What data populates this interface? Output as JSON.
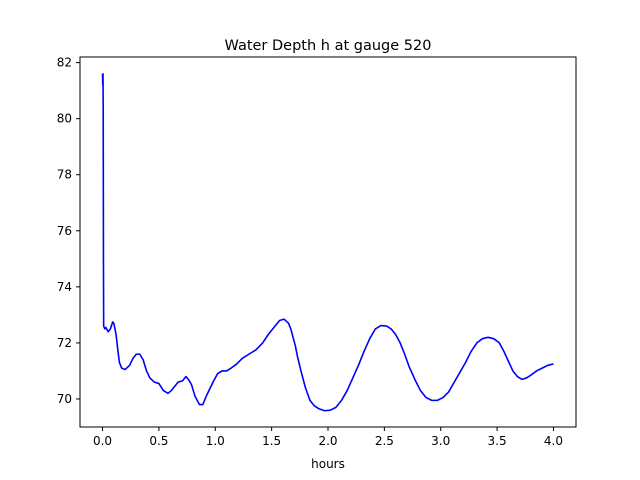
{
  "chart_data": {
    "type": "line",
    "title": "Water Depth h at gauge 520",
    "xlabel": "hours",
    "ylabel": "",
    "xlim": [
      -0.2,
      4.2
    ],
    "ylim": [
      69.0,
      82.2
    ],
    "x_ticks": [
      0.0,
      0.5,
      1.0,
      1.5,
      2.0,
      2.5,
      3.0,
      3.5,
      4.0
    ],
    "x_tick_labels": [
      "0.0",
      "0.5",
      "1.0",
      "1.5",
      "2.0",
      "2.5",
      "3.0",
      "3.5",
      "4.0"
    ],
    "y_ticks": [
      70,
      72,
      74,
      76,
      78,
      80,
      82
    ],
    "y_tick_labels": [
      "70",
      "72",
      "74",
      "76",
      "78",
      "80",
      "82"
    ],
    "grid": false,
    "legend": "none",
    "colors": {
      "line": "#0000ff",
      "axes": "#000000",
      "background": "#ffffff"
    },
    "series": [
      {
        "x": [
          0.0,
          0.002,
          0.004,
          0.006,
          0.008,
          0.01,
          0.015,
          0.02,
          0.03,
          0.05,
          0.07,
          0.09,
          0.1,
          0.12,
          0.14,
          0.15,
          0.17,
          0.2,
          0.24,
          0.27,
          0.3,
          0.33,
          0.36,
          0.39,
          0.42,
          0.46,
          0.5,
          0.54,
          0.58,
          0.61,
          0.64,
          0.67,
          0.71,
          0.74,
          0.77,
          0.79,
          0.82,
          0.86,
          0.89,
          0.92,
          0.95,
          0.98,
          1.02,
          1.06,
          1.1,
          1.14,
          1.19,
          1.24,
          1.3,
          1.36,
          1.42,
          1.47,
          1.52,
          1.57,
          1.61,
          1.65,
          1.67,
          1.69,
          1.71,
          1.73,
          1.76,
          1.8,
          1.84,
          1.88,
          1.92,
          1.97,
          2.02,
          2.07,
          2.12,
          2.17,
          2.22,
          2.27,
          2.32,
          2.37,
          2.42,
          2.47,
          2.52,
          2.56,
          2.6,
          2.64,
          2.68,
          2.72,
          2.77,
          2.82,
          2.87,
          2.92,
          2.97,
          3.02,
          3.07,
          3.12,
          3.17,
          3.22,
          3.27,
          3.32,
          3.37,
          3.42,
          3.47,
          3.52,
          3.56,
          3.6,
          3.64,
          3.68,
          3.72,
          3.76,
          3.8,
          3.85,
          3.9,
          3.95,
          4.0
        ],
        "y": [
          81.6,
          81.2,
          81.6,
          80.2,
          75.0,
          72.6,
          72.55,
          72.5,
          72.55,
          72.4,
          72.5,
          72.75,
          72.7,
          72.3,
          71.6,
          71.3,
          71.1,
          71.05,
          71.2,
          71.45,
          71.6,
          71.6,
          71.4,
          71.0,
          70.75,
          70.6,
          70.55,
          70.3,
          70.2,
          70.3,
          70.45,
          70.6,
          70.65,
          70.8,
          70.65,
          70.5,
          70.1,
          69.8,
          69.8,
          70.1,
          70.35,
          70.6,
          70.9,
          71.0,
          71.0,
          71.1,
          71.25,
          71.45,
          71.6,
          71.75,
          72.0,
          72.3,
          72.55,
          72.8,
          72.85,
          72.7,
          72.5,
          72.2,
          71.9,
          71.5,
          71.0,
          70.4,
          69.95,
          69.75,
          69.65,
          69.58,
          69.6,
          69.7,
          69.95,
          70.3,
          70.75,
          71.2,
          71.7,
          72.15,
          72.5,
          72.62,
          72.6,
          72.5,
          72.3,
          72.0,
          71.6,
          71.15,
          70.7,
          70.3,
          70.05,
          69.95,
          69.95,
          70.05,
          70.25,
          70.6,
          70.95,
          71.3,
          71.7,
          72.0,
          72.15,
          72.2,
          72.15,
          72.0,
          71.7,
          71.35,
          71.0,
          70.8,
          70.7,
          70.75,
          70.85,
          71.0,
          71.1,
          71.2,
          71.25
        ]
      }
    ]
  }
}
